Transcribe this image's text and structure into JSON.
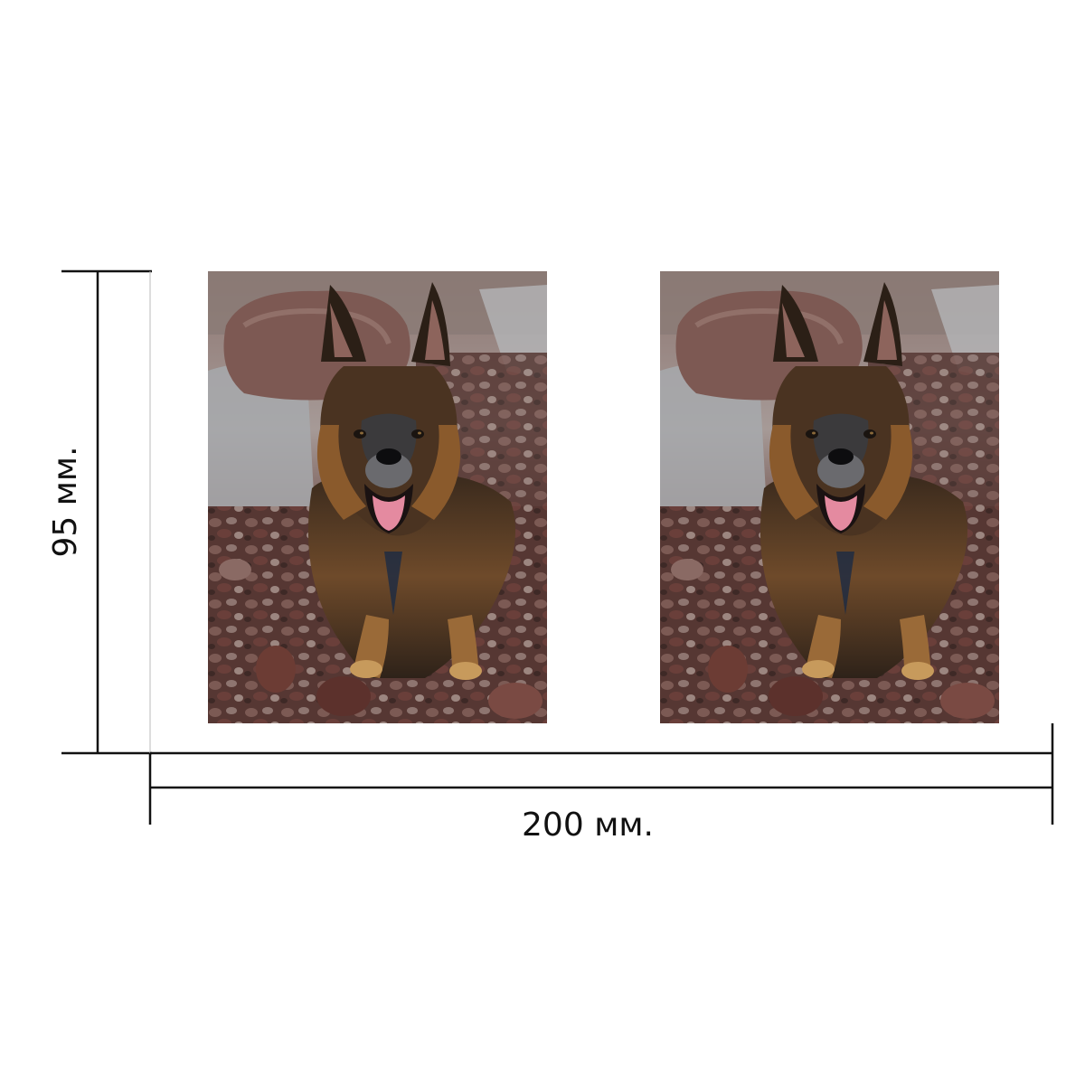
{
  "dimensions": {
    "height_label": "95 мм.",
    "width_label": "200 мм."
  },
  "photos": [
    {
      "subject": "german-shepherd-dog-on-pebbles"
    },
    {
      "subject": "german-shepherd-dog-on-pebbles"
    }
  ],
  "colors": {
    "line": "#111111",
    "stone_dark": "#5b3b36",
    "stone_light": "#9a7f78",
    "water": "#a9acb0",
    "fur_dark": "#2b2017",
    "fur_tan": "#9a6a38",
    "tongue": "#e48aa0"
  }
}
